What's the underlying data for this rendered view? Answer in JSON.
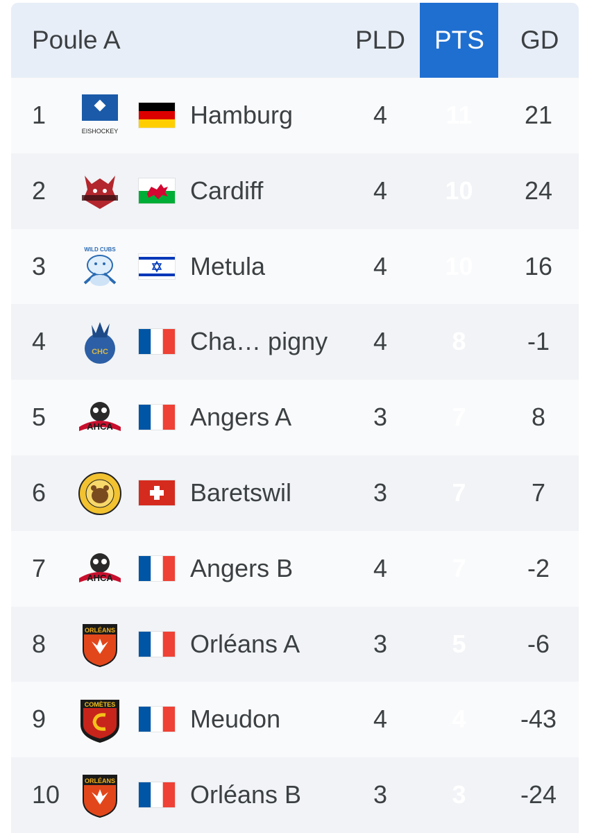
{
  "table": {
    "group_title": "Poule A",
    "columns": {
      "pld": "PLD",
      "pts": "PTS",
      "gd": "GD"
    },
    "rows": [
      {
        "rank": "1",
        "team": "Hamburg",
        "logo_text": "EISHOCKEY",
        "flag": "germany-flag",
        "pld": "4",
        "pts": "11",
        "gd": "21"
      },
      {
        "rank": "2",
        "team": "Cardiff",
        "flag": "wales-flag",
        "pld": "4",
        "pts": "10",
        "gd": "24"
      },
      {
        "rank": "3",
        "team": "Metula",
        "logo_text": "WILD CUBS",
        "flag": "israel-flag",
        "pld": "4",
        "pts": "10",
        "gd": "16"
      },
      {
        "rank": "4",
        "team": "Cha… pigny",
        "logo_text": "CHC",
        "flag": "france-flag",
        "pld": "4",
        "pts": "8",
        "gd": "-1"
      },
      {
        "rank": "5",
        "team": "Angers A",
        "logo_text": "AHCA",
        "flag": "france-flag",
        "pld": "3",
        "pts": "7",
        "gd": "8"
      },
      {
        "rank": "6",
        "team": "Baretswil",
        "flag": "switzerland-flag",
        "pld": "3",
        "pts": "7",
        "gd": "7"
      },
      {
        "rank": "7",
        "team": "Angers B",
        "logo_text": "AHCA",
        "flag": "france-flag",
        "pld": "4",
        "pts": "7",
        "gd": "-2"
      },
      {
        "rank": "8",
        "team": "Orléans A",
        "logo_text": "ORLÉANS",
        "flag": "france-flag",
        "pld": "3",
        "pts": "5",
        "gd": "-6"
      },
      {
        "rank": "9",
        "team": "Meudon",
        "logo_text": "COMÈTES",
        "flag": "france-flag",
        "pld": "4",
        "pts": "4",
        "gd": "-43"
      },
      {
        "rank": "10",
        "team": "Orléans B",
        "logo_text": "ORLÉANS",
        "flag": "france-flag",
        "pld": "3",
        "pts": "3",
        "gd": "-24"
      }
    ]
  },
  "colors": {
    "pts_column": "#1f6fd1",
    "header_bg": "#e8eef7",
    "text": "#3c4043"
  }
}
